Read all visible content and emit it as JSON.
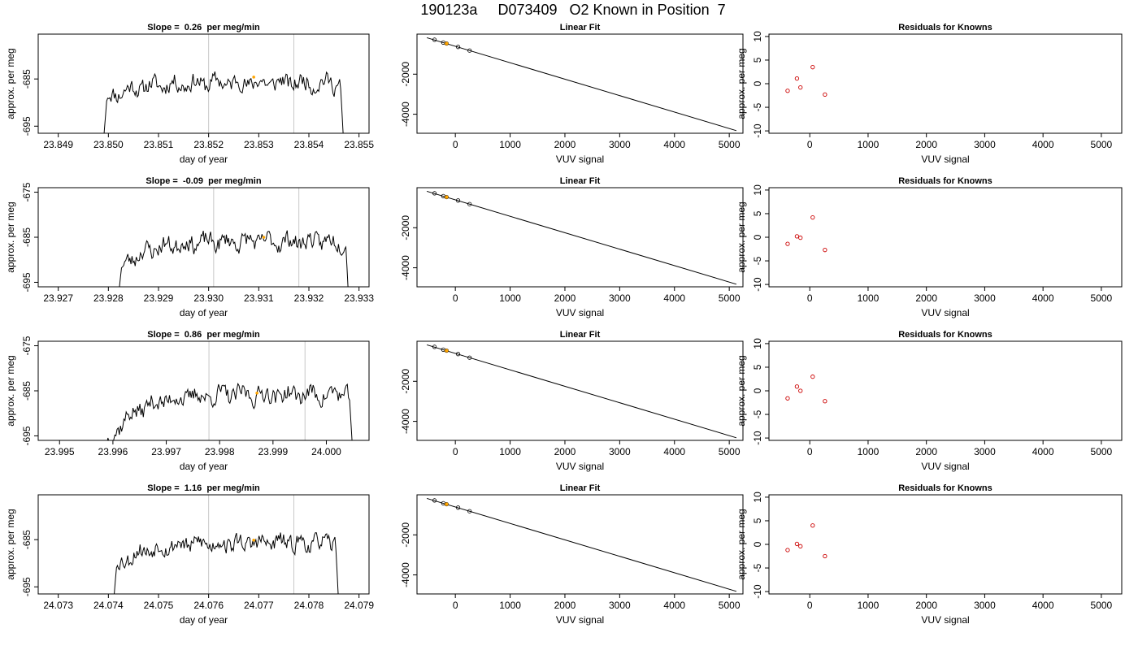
{
  "figure": {
    "title": "190123a     D073409   O2 Known in Position  7"
  },
  "colors": {
    "trace": "#000000",
    "marker": "#ffa500",
    "window": "#c8c8c8",
    "residual": "#cc0000",
    "fit_line": "#000000",
    "fit_points": "#000000"
  },
  "chart_data": [
    {
      "type": "line",
      "row": 0,
      "col": 0,
      "title": "Slope =  0.26  per meg/min",
      "xlabel": "day of year",
      "ylabel": "approx. per meg",
      "xlim": [
        23.8486,
        23.8552
      ],
      "ylim": [
        -696.5,
        -675.5
      ],
      "xticks": [
        23.849,
        23.85,
        23.851,
        23.852,
        23.853,
        23.854,
        23.855
      ],
      "xtick_labels": [
        "23.849",
        "23.850",
        "23.851",
        "23.852",
        "23.853",
        "23.854",
        "23.855"
      ],
      "yticks": [
        -695,
        -685
      ],
      "ytick_labels": [
        "-695",
        "-685"
      ],
      "vlines": [
        23.852,
        23.8537
      ],
      "trace": {
        "x_start": 23.8499,
        "x_end": 23.8547,
        "base": -687.0,
        "drift": 2.0,
        "amp": 1.6,
        "seed": 11
      },
      "marker": {
        "x": 23.8529,
        "y": -684.6
      }
    },
    {
      "type": "line",
      "row": 0,
      "col": 1,
      "title": "Linear Fit",
      "xlabel": "VUV signal",
      "ylabel": "",
      "xlim": [
        -700,
        5250
      ],
      "ylim": [
        -4950,
        0
      ],
      "xticks": [
        0,
        1000,
        2000,
        3000,
        4000,
        5000
      ],
      "xtick_labels": [
        "0",
        "1000",
        "2000",
        "3000",
        "4000",
        "5000"
      ],
      "yticks": [
        -4000,
        -2000
      ],
      "ytick_labels": [
        "-4000",
        "-2000"
      ],
      "line": {
        "x": [
          -520,
          5130
        ],
        "y": [
          -180,
          -4820
        ]
      },
      "points": {
        "x": [
          -380,
          -220,
          -160,
          50,
          260
        ],
        "y": [
          -280,
          -420,
          -470,
          -640,
          -820
        ]
      },
      "marker": {
        "x": -160,
        "y": -470
      }
    },
    {
      "type": "scatter",
      "row": 0,
      "col": 2,
      "title": "Residuals for Knowns",
      "xlabel": "VUV signal",
      "ylabel": "approx. per meg",
      "xlim": [
        -700,
        5350
      ],
      "ylim": [
        -10.5,
        10.5
      ],
      "xticks": [
        0,
        1000,
        2000,
        3000,
        4000,
        5000
      ],
      "xtick_labels": [
        "0",
        "1000",
        "2000",
        "3000",
        "4000",
        "5000"
      ],
      "yticks": [
        -10,
        -5,
        0,
        5,
        10
      ],
      "ytick_labels": [
        "-10",
        "-5",
        "0",
        "5",
        "10"
      ],
      "points": {
        "x": [
          -380,
          -220,
          -160,
          50,
          260
        ],
        "y": [
          -1.5,
          1.1,
          -0.8,
          3.5,
          -2.3
        ]
      }
    },
    {
      "type": "line",
      "row": 1,
      "col": 0,
      "title": "Slope =  -0.09  per meg/min",
      "xlabel": "day of year",
      "ylabel": "approx. per meg",
      "xlim": [
        23.9266,
        23.9332
      ],
      "ylim": [
        -696,
        -674
      ],
      "xticks": [
        23.927,
        23.928,
        23.929,
        23.93,
        23.931,
        23.932,
        23.933
      ],
      "xtick_labels": [
        "23.927",
        "23.928",
        "23.929",
        "23.930",
        "23.931",
        "23.932",
        "23.933"
      ],
      "yticks": [
        -695,
        -685,
        -675
      ],
      "ytick_labels": [
        "-695",
        "-685",
        "-675"
      ],
      "vlines": [
        23.9301,
        23.9318
      ],
      "trace": {
        "x_start": 23.9282,
        "x_end": 23.9328,
        "base": -688.0,
        "drift": 3.5,
        "amp": 1.7,
        "seed": 23
      },
      "marker": {
        "x": 23.9311,
        "y": -685.0
      }
    },
    {
      "type": "line",
      "row": 1,
      "col": 1,
      "title": "Linear Fit",
      "xlabel": "VUV signal",
      "ylabel": "",
      "xlim": [
        -700,
        5250
      ],
      "ylim": [
        -4950,
        0
      ],
      "xticks": [
        0,
        1000,
        2000,
        3000,
        4000,
        5000
      ],
      "xtick_labels": [
        "0",
        "1000",
        "2000",
        "3000",
        "4000",
        "5000"
      ],
      "yticks": [
        -4000,
        -2000
      ],
      "ytick_labels": [
        "-4000",
        "-2000"
      ],
      "line": {
        "x": [
          -520,
          5130
        ],
        "y": [
          -180,
          -4820
        ]
      },
      "points": {
        "x": [
          -380,
          -220,
          -160,
          50,
          260
        ],
        "y": [
          -280,
          -420,
          -470,
          -640,
          -820
        ]
      },
      "marker": {
        "x": -160,
        "y": -470
      }
    },
    {
      "type": "scatter",
      "row": 1,
      "col": 2,
      "title": "Residuals for Knowns",
      "xlabel": "VUV signal",
      "ylabel": "approx. per meg",
      "xlim": [
        -700,
        5350
      ],
      "ylim": [
        -10.5,
        10.5
      ],
      "xticks": [
        0,
        1000,
        2000,
        3000,
        4000,
        5000
      ],
      "xtick_labels": [
        "0",
        "1000",
        "2000",
        "3000",
        "4000",
        "5000"
      ],
      "yticks": [
        -10,
        -5,
        0,
        5,
        10
      ],
      "ytick_labels": [
        "-10",
        "-5",
        "0",
        "5",
        "10"
      ],
      "points": {
        "x": [
          -380,
          -220,
          -160,
          50,
          260
        ],
        "y": [
          -1.4,
          0.2,
          -0.1,
          4.2,
          -2.7
        ]
      }
    },
    {
      "type": "line",
      "row": 2,
      "col": 0,
      "title": "Slope =  0.86  per meg/min",
      "xlabel": "day of year",
      "ylabel": "approx. per meg",
      "xlim": [
        23.9946,
        24.0008
      ],
      "ylim": [
        -696,
        -674
      ],
      "xticks": [
        23.995,
        23.996,
        23.997,
        23.998,
        23.999,
        24.0
      ],
      "xtick_labels": [
        "23.995",
        "23.996",
        "23.997",
        "23.998",
        "23.999",
        "24.000"
      ],
      "yticks": [
        -695,
        -685,
        -675
      ],
      "ytick_labels": [
        "-695",
        "-685",
        "-675"
      ],
      "vlines": [
        23.9978,
        23.9996
      ],
      "trace": {
        "x_start": 23.9958,
        "x_end": 24.0005,
        "base": -690.0,
        "drift": 7.0,
        "amp": 1.8,
        "seed": 37
      },
      "marker": {
        "x": 23.9987,
        "y": -685.5
      }
    },
    {
      "type": "line",
      "row": 2,
      "col": 1,
      "title": "Linear Fit",
      "xlabel": "VUV signal",
      "ylabel": "",
      "xlim": [
        -700,
        5250
      ],
      "ylim": [
        -4950,
        0
      ],
      "xticks": [
        0,
        1000,
        2000,
        3000,
        4000,
        5000
      ],
      "xtick_labels": [
        "0",
        "1000",
        "2000",
        "3000",
        "4000",
        "5000"
      ],
      "yticks": [
        -4000,
        -2000
      ],
      "ytick_labels": [
        "-4000",
        "-2000"
      ],
      "line": {
        "x": [
          -520,
          5130
        ],
        "y": [
          -180,
          -4820
        ]
      },
      "points": {
        "x": [
          -380,
          -220,
          -160,
          50,
          260
        ],
        "y": [
          -280,
          -420,
          -470,
          -640,
          -820
        ]
      },
      "marker": {
        "x": -160,
        "y": -470
      }
    },
    {
      "type": "scatter",
      "row": 2,
      "col": 2,
      "title": "Residuals for Knowns",
      "xlabel": "VUV signal",
      "ylabel": "approx. per meg",
      "xlim": [
        -700,
        5350
      ],
      "ylim": [
        -10.5,
        10.5
      ],
      "xticks": [
        0,
        1000,
        2000,
        3000,
        4000,
        5000
      ],
      "xtick_labels": [
        "0",
        "1000",
        "2000",
        "3000",
        "4000",
        "5000"
      ],
      "yticks": [
        -10,
        -5,
        0,
        5,
        10
      ],
      "ytick_labels": [
        "-10",
        "-5",
        "0",
        "5",
        "10"
      ],
      "points": {
        "x": [
          -380,
          -220,
          -160,
          50,
          260
        ],
        "y": [
          -1.6,
          0.9,
          0.0,
          3.0,
          -2.2
        ]
      }
    },
    {
      "type": "line",
      "row": 3,
      "col": 0,
      "title": "Slope =  1.16  per meg/min",
      "xlabel": "day of year",
      "ylabel": "approx. per meg",
      "xlim": [
        24.0726,
        24.0792
      ],
      "ylim": [
        -696.5,
        -675.5
      ],
      "xticks": [
        24.073,
        24.074,
        24.075,
        24.076,
        24.077,
        24.078,
        24.079
      ],
      "xtick_labels": [
        "24.073",
        "24.074",
        "24.075",
        "24.076",
        "24.077",
        "24.078",
        "24.079"
      ],
      "yticks": [
        -695,
        -685
      ],
      "ytick_labels": [
        "-695",
        "-685"
      ],
      "vlines": [
        24.076,
        24.0777
      ],
      "trace": {
        "x_start": 24.0741,
        "x_end": 24.0786,
        "base": -687.5,
        "drift": 3.0,
        "amp": 1.6,
        "seed": 53
      },
      "marker": {
        "x": 24.0769,
        "y": -685.1
      }
    },
    {
      "type": "line",
      "row": 3,
      "col": 1,
      "title": "Linear Fit",
      "xlabel": "VUV signal",
      "ylabel": "",
      "xlim": [
        -700,
        5250
      ],
      "ylim": [
        -4950,
        0
      ],
      "xticks": [
        0,
        1000,
        2000,
        3000,
        4000,
        5000
      ],
      "xtick_labels": [
        "0",
        "1000",
        "2000",
        "3000",
        "4000",
        "5000"
      ],
      "yticks": [
        -4000,
        -2000
      ],
      "ytick_labels": [
        "-4000",
        "-2000"
      ],
      "line": {
        "x": [
          -520,
          5130
        ],
        "y": [
          -180,
          -4820
        ]
      },
      "points": {
        "x": [
          -380,
          -220,
          -160,
          50,
          260
        ],
        "y": [
          -280,
          -420,
          -470,
          -640,
          -820
        ]
      },
      "marker": {
        "x": -160,
        "y": -470
      }
    },
    {
      "type": "scatter",
      "row": 3,
      "col": 2,
      "title": "Residuals for Knowns",
      "xlabel": "VUV signal",
      "ylabel": "approx. per meg",
      "xlim": [
        -700,
        5350
      ],
      "ylim": [
        -10.5,
        10.5
      ],
      "xticks": [
        0,
        1000,
        2000,
        3000,
        4000,
        5000
      ],
      "xtick_labels": [
        "0",
        "1000",
        "2000",
        "3000",
        "4000",
        "5000"
      ],
      "yticks": [
        -10,
        -5,
        0,
        5,
        10
      ],
      "ytick_labels": [
        "-10",
        "-5",
        "0",
        "5",
        "10"
      ],
      "points": {
        "x": [
          -380,
          -220,
          -160,
          50,
          260
        ],
        "y": [
          -1.2,
          0.1,
          -0.4,
          4.0,
          -2.5
        ]
      }
    }
  ]
}
